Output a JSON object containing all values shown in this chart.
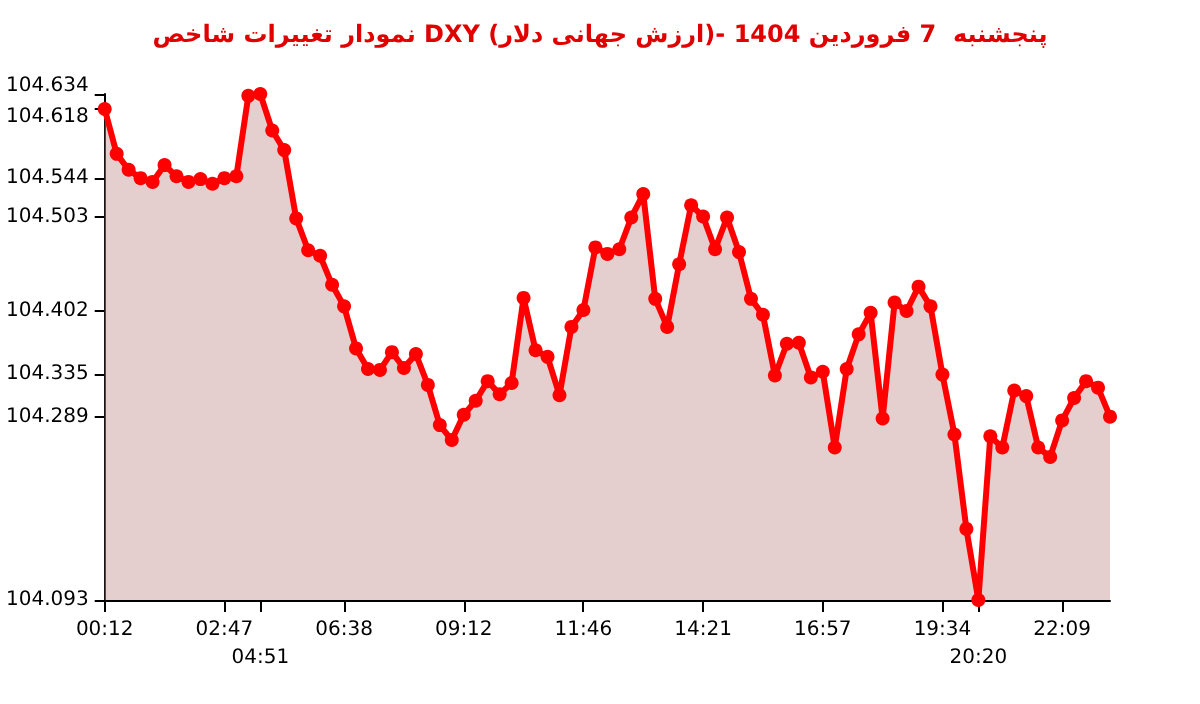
{
  "chart_data": {
    "type": "area",
    "title": "نمودار تغییرات شاخص DXY (ارزش جهانی دلار)- پنجشنبه  7 فروردین 1404",
    "categories": [
      "00:12",
      null,
      null,
      null,
      null,
      null,
      null,
      null,
      null,
      null,
      "02:47",
      null,
      null,
      "04:51",
      null,
      null,
      null,
      null,
      null,
      null,
      "06:38",
      null,
      null,
      null,
      null,
      null,
      null,
      null,
      null,
      null,
      "09:12",
      null,
      null,
      null,
      null,
      null,
      null,
      null,
      null,
      null,
      "11:46",
      null,
      null,
      null,
      null,
      null,
      null,
      null,
      null,
      null,
      "14:21",
      null,
      null,
      null,
      null,
      null,
      null,
      null,
      null,
      null,
      "16:57",
      null,
      null,
      null,
      null,
      null,
      null,
      null,
      null,
      null,
      "19:34",
      null,
      null,
      "20:20",
      null,
      null,
      null,
      null,
      null,
      null,
      "22:09",
      null,
      null,
      null,
      null
    ],
    "series": [
      {
        "color": "#ff0000",
        "values": [
          104.618,
          104.57,
          104.553,
          104.544,
          104.54,
          104.558,
          104.546,
          104.54,
          104.543,
          104.538,
          104.544,
          104.546,
          104.632,
          104.634,
          104.595,
          104.574,
          104.501,
          104.467,
          104.461,
          104.43,
          104.407,
          104.362,
          104.34,
          104.339,
          104.358,
          104.341,
          104.356,
          104.323,
          104.28,
          104.264,
          104.291,
          104.306,
          104.327,
          104.313,
          104.325,
          104.416,
          104.36,
          104.353,
          104.312,
          104.385,
          104.403,
          104.47,
          104.463,
          104.468,
          104.502,
          104.527,
          104.415,
          104.385,
          104.452,
          104.515,
          104.503,
          104.468,
          104.502,
          104.465,
          104.415,
          104.398,
          104.333,
          104.367,
          104.368,
          104.331,
          104.337,
          104.256,
          104.34,
          104.377,
          104.4,
          104.287,
          104.411,
          104.402,
          104.428,
          104.407,
          104.334,
          104.27,
          104.169,
          104.093,
          104.268,
          104.256,
          104.317,
          104.311,
          104.256,
          104.246,
          104.285,
          104.309,
          104.327,
          104.32,
          104.289
        ]
      }
    ],
    "ylim": [
      104.093,
      104.634
    ],
    "yticks": [
      104.093,
      104.289,
      104.335,
      104.402,
      104.503,
      104.544,
      104.618,
      104.634
    ],
    "marker": "circle",
    "line_style": "solid"
  }
}
